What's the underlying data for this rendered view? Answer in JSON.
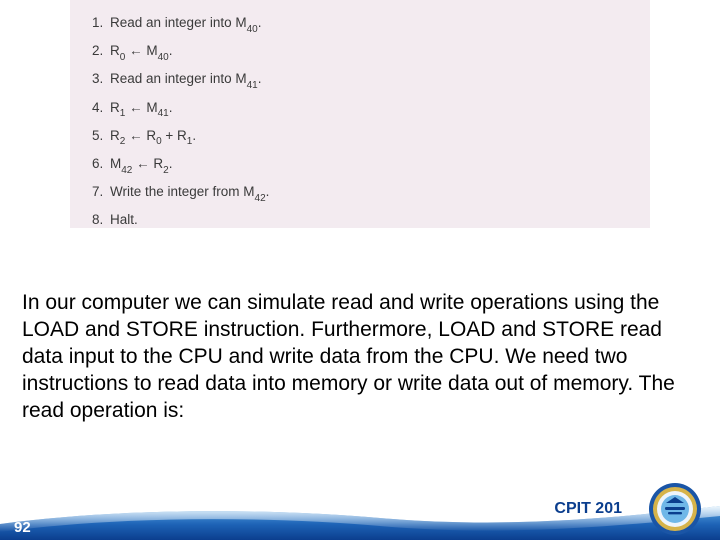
{
  "algo": {
    "bg": "#f3ebf0",
    "text_color": "#3a3a3a",
    "font_size_pt": 10,
    "items": [
      {
        "n": "1.",
        "parts": [
          "Read an integer into M",
          "40",
          "."
        ]
      },
      {
        "n": "2.",
        "parts": [
          "R",
          "0",
          " ← M",
          "40",
          "."
        ]
      },
      {
        "n": "3.",
        "parts": [
          "Read an integer into M",
          "41",
          "."
        ]
      },
      {
        "n": "4.",
        "parts": [
          "R",
          "1",
          " ← M",
          "41",
          "."
        ]
      },
      {
        "n": "5.",
        "parts": [
          "R",
          "2",
          " ← R",
          "0",
          " + R",
          "1",
          "."
        ]
      },
      {
        "n": "6.",
        "parts": [
          "M",
          "42",
          " ← R",
          "2",
          "."
        ]
      },
      {
        "n": "7.",
        "parts": [
          "Write the integer from M",
          "42",
          "."
        ]
      },
      {
        "n": "8.",
        "parts": [
          "Halt."
        ]
      }
    ]
  },
  "body": {
    "text": "In our computer we can simulate read and write operations using the LOAD and STORE instruction. Furthermore, LOAD and STORE read data input to the CPU and write data from the CPU. We need two instructions to read data into memory or write data out of memory. The read operation is:",
    "font_size_pt": 16,
    "color": "#000000"
  },
  "footer": {
    "page_number": "92",
    "course_code": "CPIT 201",
    "bar_gradient_top": "#5aa9e6",
    "bar_gradient_bottom": "#0b3e8e",
    "shine_color": "#ffffff",
    "logo_ring_outer": "#1a55a6",
    "logo_ring_gold": "#d6b34a",
    "logo_inner": "#6fb7e8"
  }
}
